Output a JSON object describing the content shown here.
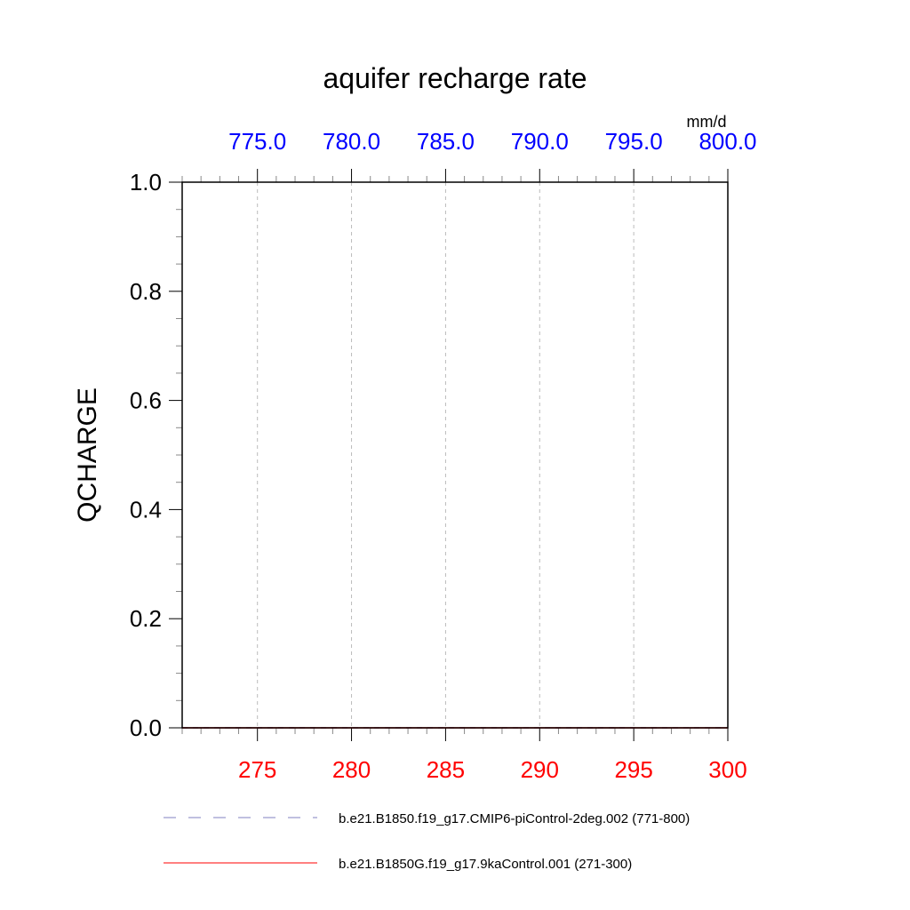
{
  "chart_data": {
    "type": "line",
    "title": "aquifer recharge rate",
    "ylabel": "QCHARGE",
    "units_label": "mm/d",
    "ylim": [
      0,
      1
    ],
    "yticks": [
      "0.0",
      "0.2",
      "0.4",
      "0.6",
      "0.8",
      "1.0"
    ],
    "bottom_xaxis": {
      "xlim": [
        271,
        300
      ],
      "ticks": [
        "275",
        "280",
        "285",
        "290",
        "295",
        "300"
      ],
      "color": "#ff0000"
    },
    "top_xaxis": {
      "xlim": [
        771,
        800
      ],
      "ticks": [
        "775.0",
        "780.0",
        "785.0",
        "790.0",
        "795.0",
        "800.0"
      ],
      "color": "#0000ff"
    },
    "grid": "vertical dashed at major x ticks",
    "legend_placement": "bottom",
    "series": [
      {
        "name": "b.e21.B1850.f19_g17.CMIP6-piControl-2deg.002 (771-800)",
        "axis": "top",
        "color": "#8080c0",
        "style": "dashed",
        "x": [
          771,
          772,
          773,
          774,
          775,
          776,
          777,
          778,
          779,
          780,
          781,
          782,
          783,
          784,
          785,
          786,
          787,
          788,
          789,
          790,
          791,
          792,
          793,
          794,
          795,
          796,
          797,
          798,
          799,
          800
        ],
        "y": [
          0,
          0,
          0,
          0,
          0,
          0,
          0,
          0,
          0,
          0,
          0,
          0,
          0,
          0,
          0,
          0,
          0,
          0,
          0,
          0,
          0,
          0,
          0,
          0,
          0,
          0,
          0,
          0,
          0,
          0
        ]
      },
      {
        "name": "b.e21.B1850G.f19_g17.9kaControl.001 (271-300)",
        "axis": "bottom",
        "color": "#ff0000",
        "style": "solid",
        "x": [
          271,
          272,
          273,
          274,
          275,
          276,
          277,
          278,
          279,
          280,
          281,
          282,
          283,
          284,
          285,
          286,
          287,
          288,
          289,
          290,
          291,
          292,
          293,
          294,
          295,
          296,
          297,
          298,
          299,
          300
        ],
        "y": [
          0,
          0,
          0,
          0,
          0,
          0,
          0,
          0,
          0,
          0,
          0,
          0,
          0,
          0,
          0,
          0,
          0,
          0,
          0,
          0,
          0,
          0,
          0,
          0,
          0,
          0,
          0,
          0,
          0,
          0
        ]
      }
    ]
  }
}
